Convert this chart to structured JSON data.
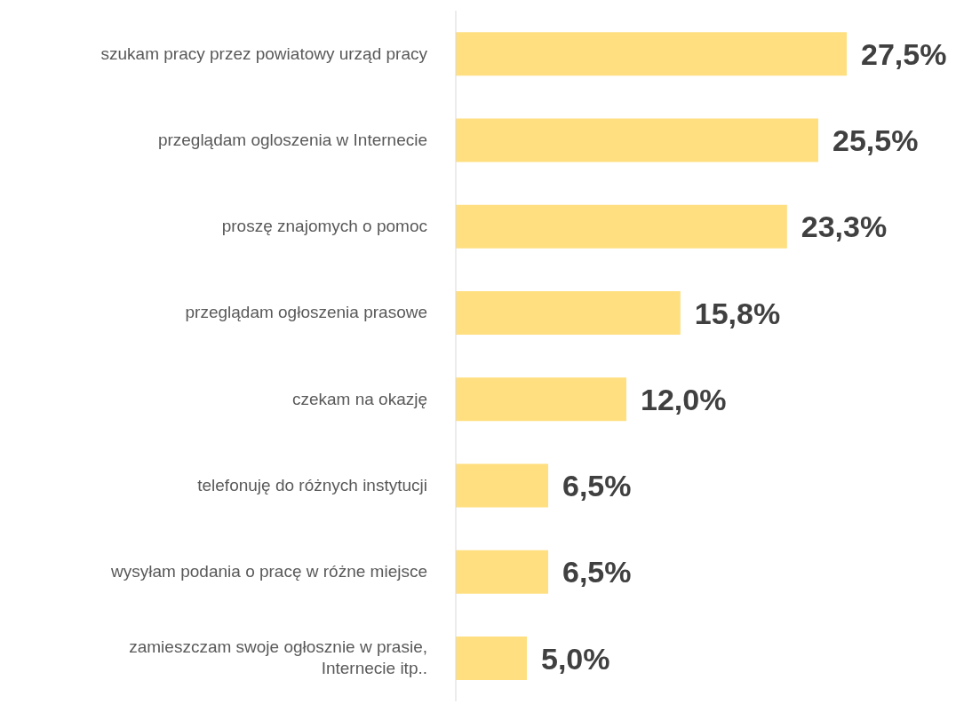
{
  "chart_data": {
    "type": "bar",
    "orientation": "horizontal",
    "categories": [
      "szukam pracy przez powiatowy urząd pracy",
      "przeglądam ogloszenia w Internecie",
      "proszę znajomych o pomoc",
      "przeglądam ogłoszenia prasowe",
      "czekam na okazję",
      "telefonuję do różnych instytucji",
      "wysyłam podania o pracę w różne miejsce",
      "zamieszczam swoje ogłosznie w prasie, Internecie itp.."
    ],
    "values": [
      27.5,
      25.5,
      23.3,
      15.8,
      12.0,
      6.5,
      6.5,
      5.0
    ],
    "value_labels": [
      "27,5%",
      "25,5%",
      "23,3%",
      "15,8%",
      "12,0%",
      "6,5%",
      "6,5%",
      "5,0%"
    ],
    "color": "#ffdf80",
    "legend": false,
    "grid": false
  }
}
